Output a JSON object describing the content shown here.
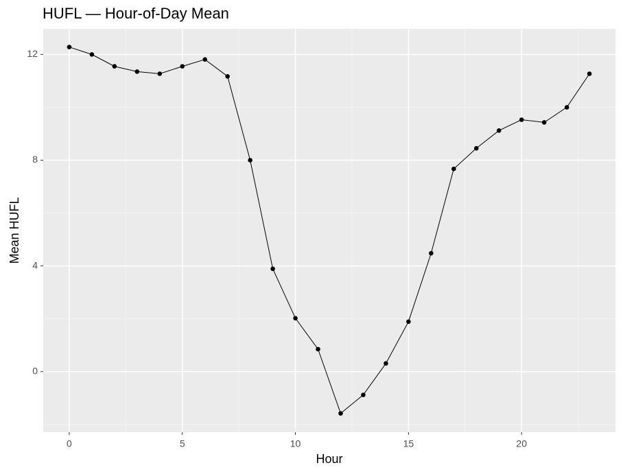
{
  "chart_data": {
    "type": "line",
    "title": "HUFL — Hour-of-Day Mean",
    "x_label": "Hour",
    "y_label": "Mean HUFL",
    "x": [
      0,
      1,
      2,
      3,
      4,
      5,
      6,
      7,
      8,
      9,
      10,
      11,
      12,
      13,
      14,
      15,
      16,
      17,
      18,
      19,
      20,
      21,
      22,
      23
    ],
    "series": [
      {
        "name": "Mean HUFL",
        "color": "#000000",
        "values": [
          12.28,
          12.0,
          11.55,
          11.35,
          11.27,
          11.55,
          11.81,
          11.17,
          8.0,
          3.89,
          2.02,
          0.85,
          -1.58,
          -0.88,
          0.31,
          1.89,
          4.48,
          7.67,
          8.45,
          9.12,
          9.53,
          9.43,
          10.0,
          11.27
        ]
      }
    ],
    "xlim": [
      -1.15,
      24.15
    ],
    "ylim": [
      -2.29,
      12.97
    ],
    "xticks": [
      0,
      5,
      10,
      15,
      20
    ],
    "yticks": [
      0,
      4,
      8,
      12
    ],
    "grid": true
  }
}
